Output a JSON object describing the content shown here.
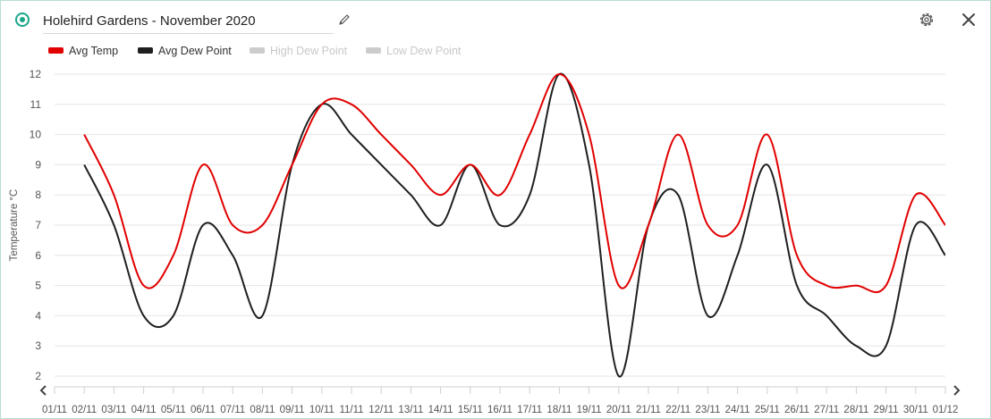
{
  "header": {
    "title": "Holehird Gardens - November 2020",
    "icons": {
      "status": "status-dot-icon",
      "edit": "pencil-icon",
      "settings": "gear-icon",
      "close": "close-icon"
    }
  },
  "colors": {
    "accent": "#1aa68a",
    "avg_temp": "#e10000",
    "avg_dew": "#1f1f1f",
    "inactive": "#cccccc",
    "grid": "#e6e6e6"
  },
  "legend": [
    {
      "label": "Avg Temp",
      "color": "#e10000",
      "active": true
    },
    {
      "label": "Avg Dew Point",
      "color": "#1f1f1f",
      "active": true
    },
    {
      "label": "High Dew Point",
      "color": "#cccccc",
      "active": false
    },
    {
      "label": "Low Dew Point",
      "color": "#cccccc",
      "active": false
    }
  ],
  "chart_data": {
    "type": "line",
    "title": "",
    "xlabel": "",
    "ylabel": "Temperature °C",
    "ylim": [
      2,
      12
    ],
    "yticks": [
      2,
      3,
      4,
      5,
      6,
      7,
      8,
      9,
      10,
      11,
      12
    ],
    "grid": true,
    "legend_position": "top-left",
    "x_tick_labels": [
      "01/11",
      "02/11",
      "03/11",
      "04/11",
      "05/11",
      "06/11",
      "07/11",
      "08/11",
      "09/11",
      "10/11",
      "11/11",
      "12/11",
      "13/11",
      "14/11",
      "15/11",
      "16/11",
      "17/11",
      "18/11",
      "19/11",
      "20/11",
      "21/11",
      "22/11",
      "23/11",
      "24/11",
      "25/11",
      "26/11",
      "27/11",
      "28/11",
      "29/11",
      "30/11",
      "01/12"
    ],
    "x": [
      "02/11",
      "03/11",
      "04/11",
      "05/11",
      "06/11",
      "07/11",
      "08/11",
      "09/11",
      "10/11",
      "11/11",
      "12/11",
      "13/11",
      "14/11",
      "15/11",
      "16/11",
      "17/11",
      "18/11",
      "19/11",
      "20/11",
      "21/11",
      "22/11",
      "23/11",
      "24/11",
      "25/11",
      "26/11",
      "27/11",
      "28/11",
      "29/11",
      "30/11",
      "01/12"
    ],
    "series": [
      {
        "name": "Avg Temp",
        "values": [
          10,
          8,
          5,
          6,
          9,
          7,
          7,
          9,
          11,
          11,
          10,
          9,
          8,
          9,
          8,
          10,
          12,
          10,
          5,
          7,
          10,
          7,
          7,
          10,
          6,
          5,
          5,
          5,
          8,
          7
        ]
      },
      {
        "name": "Avg Dew Point",
        "values": [
          9,
          7,
          4,
          4,
          7,
          6,
          4,
          9,
          11,
          10,
          9,
          8,
          7,
          9,
          7,
          8,
          12,
          9,
          2,
          7,
          8,
          4,
          6,
          9,
          5,
          4,
          3,
          3,
          7,
          6
        ]
      }
    ],
    "hidden_series": [
      "High Dew Point",
      "Low Dew Point"
    ]
  }
}
